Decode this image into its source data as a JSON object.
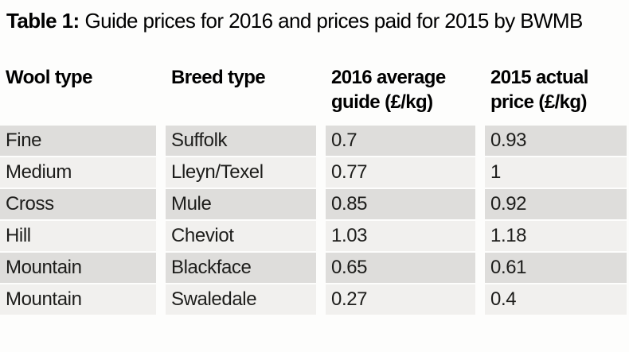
{
  "title": {
    "prefix": "Table 1:",
    "rest": "Guide prices for 2016 and prices paid for 2015 by BWMB"
  },
  "chart_data": {
    "type": "table",
    "title": "Table 1: Guide prices for 2016 and prices paid for 2015 by BWMB",
    "columns": [
      "Wool type",
      "Breed type",
      "2016 average guide (£/kg)",
      "2015 actual price (£/kg)"
    ],
    "rows": [
      [
        "Fine",
        "Suffolk",
        "0.7",
        "0.93"
      ],
      [
        "Medium",
        "Lleyn/Texel",
        "0.77",
        "1"
      ],
      [
        "Cross",
        "Mule",
        "0.85",
        "0.92"
      ],
      [
        "Hill",
        "Cheviot",
        "1.03",
        "1.18"
      ],
      [
        "Mountain",
        "Blackface",
        "0.65",
        "0.61"
      ],
      [
        "Mountain",
        "Swaledale",
        "0.27",
        "0.4"
      ]
    ],
    "layout_hints": {
      "row_striping": "alternating dark/light grey starting dark",
      "header_background": "none",
      "column_separator": "white gutters"
    }
  },
  "colors": {
    "background": "#fdfdfc",
    "row_dark": "#dedddb",
    "row_light": "#f1f0ee",
    "text": "#1d1d1b",
    "heading_text": "#000000"
  }
}
